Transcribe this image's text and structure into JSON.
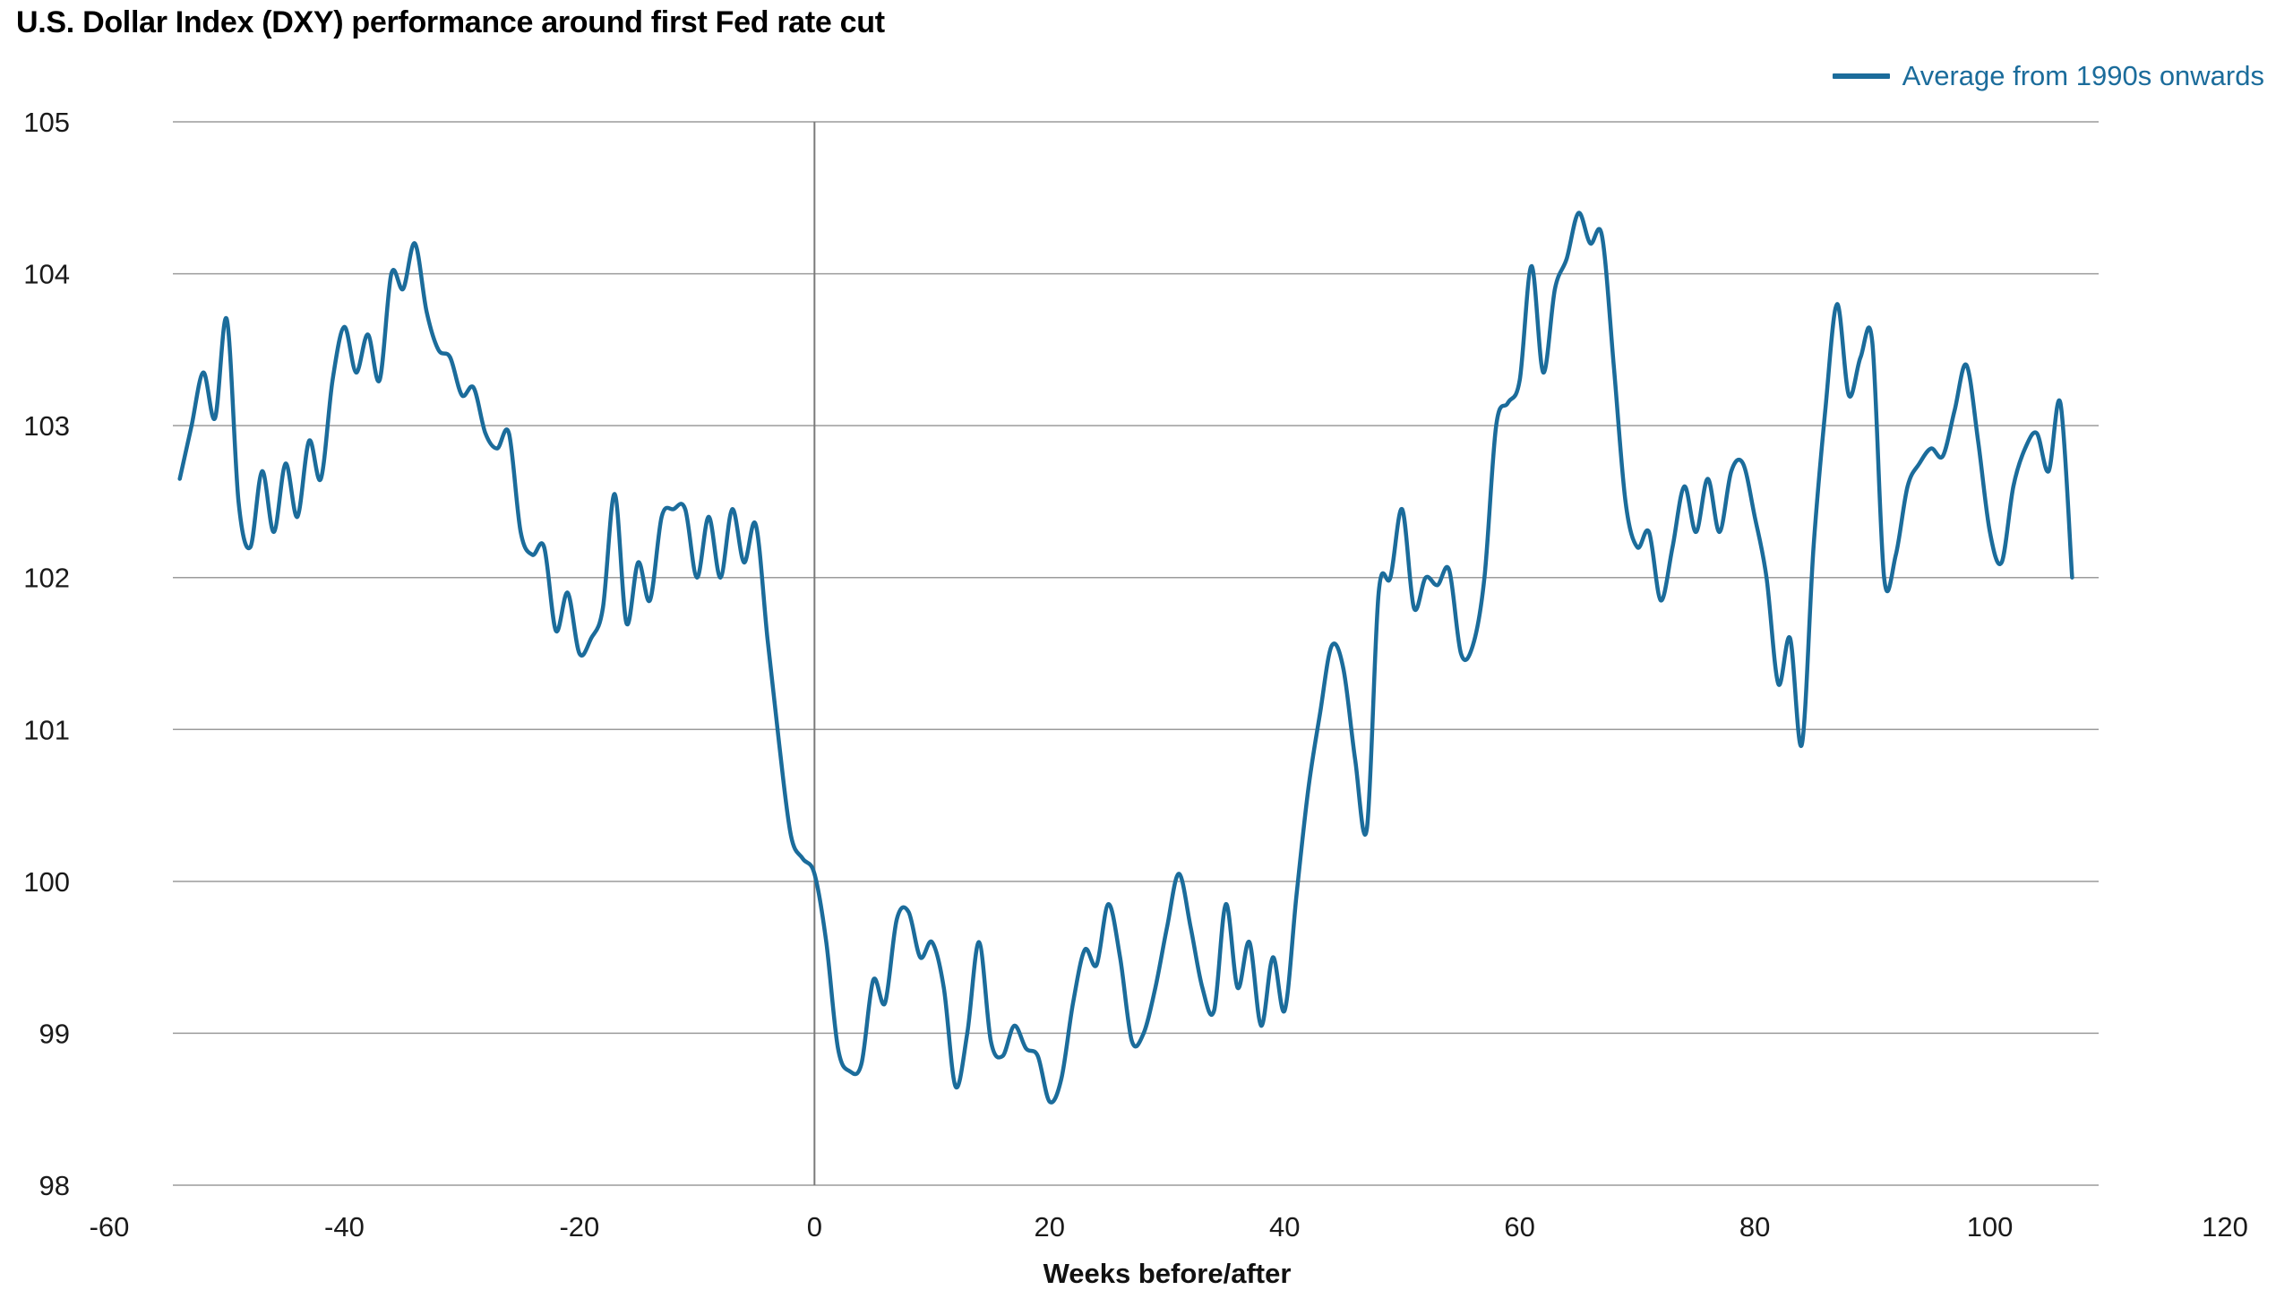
{
  "title": "U.S. Dollar Index (DXY) performance around first Fed rate cut",
  "legend": {
    "label": "Average from 1990s onwards"
  },
  "colors": {
    "line": "#1b6c9b",
    "grid": "#9b9b9b",
    "zero_line": "#7a7a7a",
    "text": "#1a1a1a"
  },
  "chart_data": {
    "type": "line",
    "title": "U.S. Dollar Index (DXY) performance around first Fed rate cut",
    "xlabel": "Weeks before/after",
    "ylabel": "",
    "xlim": [
      -60,
      120
    ],
    "ylim": [
      98,
      105
    ],
    "x_ticks": [
      -60,
      -40,
      -20,
      0,
      20,
      40,
      60,
      80,
      100,
      120
    ],
    "y_ticks": [
      98,
      99,
      100,
      101,
      102,
      103,
      104,
      105
    ],
    "grid": "horizontal",
    "legend_position": "top-right",
    "annotations": [
      {
        "type": "vline",
        "x": 0
      }
    ],
    "series": [
      {
        "name": "Average from 1990s onwards",
        "color": "#1b6c9b",
        "x": [
          -54,
          -53,
          -52,
          -51,
          -50,
          -49,
          -48,
          -47,
          -46,
          -45,
          -44,
          -43,
          -42,
          -41,
          -40,
          -39,
          -38,
          -37,
          -36,
          -35,
          -34,
          -33,
          -32,
          -31,
          -30,
          -29,
          -28,
          -27,
          -26,
          -25,
          -24,
          -23,
          -22,
          -21,
          -20,
          -19,
          -18,
          -17,
          -16,
          -15,
          -14,
          -13,
          -12,
          -11,
          -10,
          -9,
          -8,
          -7,
          -6,
          -5,
          -4,
          -3,
          -2,
          -1,
          0,
          1,
          2,
          3,
          4,
          5,
          6,
          7,
          8,
          9,
          10,
          11,
          12,
          13,
          14,
          15,
          16,
          17,
          18,
          19,
          20,
          21,
          22,
          23,
          24,
          25,
          26,
          27,
          28,
          29,
          30,
          31,
          32,
          33,
          34,
          35,
          36,
          37,
          38,
          39,
          40,
          41,
          42,
          43,
          44,
          45,
          46,
          47,
          48,
          49,
          50,
          51,
          52,
          53,
          54,
          55,
          56,
          57,
          58,
          59,
          60,
          61,
          62,
          63,
          64,
          65,
          66,
          67,
          68,
          69,
          70,
          71,
          72,
          73,
          74,
          75,
          76,
          77,
          78,
          79,
          80,
          81,
          82,
          83,
          84,
          85,
          86,
          87,
          88,
          89,
          90,
          91,
          92,
          93,
          94,
          95,
          96,
          97,
          98,
          99,
          100,
          101,
          102,
          103,
          104,
          105,
          106,
          107
        ],
        "y": [
          102.65,
          103.0,
          103.35,
          103.05,
          103.7,
          102.5,
          102.2,
          102.7,
          102.3,
          102.75,
          102.4,
          102.9,
          102.65,
          103.3,
          103.65,
          103.35,
          103.6,
          103.3,
          104.0,
          103.9,
          104.2,
          103.75,
          103.5,
          103.45,
          103.2,
          103.25,
          102.95,
          102.85,
          102.95,
          102.3,
          102.15,
          102.2,
          101.65,
          101.9,
          101.5,
          101.6,
          101.8,
          102.55,
          101.7,
          102.1,
          101.85,
          102.4,
          102.45,
          102.45,
          102.0,
          102.4,
          102.0,
          102.45,
          102.1,
          102.35,
          101.6,
          100.9,
          100.3,
          100.15,
          100.05,
          99.6,
          98.9,
          98.75,
          98.8,
          99.35,
          99.2,
          99.75,
          99.8,
          99.5,
          99.6,
          99.3,
          98.65,
          99.0,
          99.6,
          98.95,
          98.85,
          99.05,
          98.9,
          98.85,
          98.55,
          98.7,
          99.2,
          99.55,
          99.45,
          99.85,
          99.5,
          98.95,
          99.0,
          99.3,
          99.7,
          100.05,
          99.7,
          99.3,
          99.15,
          99.85,
          99.3,
          99.6,
          99.05,
          99.5,
          99.15,
          99.9,
          100.6,
          101.1,
          101.55,
          101.4,
          100.8,
          100.35,
          101.9,
          102.0,
          102.45,
          101.8,
          102.0,
          101.95,
          102.05,
          101.5,
          101.55,
          102.0,
          103.0,
          103.15,
          103.3,
          104.05,
          103.35,
          103.9,
          104.1,
          104.4,
          104.2,
          104.25,
          103.4,
          102.5,
          102.2,
          102.3,
          101.85,
          102.2,
          102.6,
          102.3,
          102.65,
          102.3,
          102.7,
          102.75,
          102.4,
          102.0,
          101.3,
          101.6,
          100.9,
          102.2,
          103.1,
          103.8,
          103.2,
          103.45,
          103.55,
          102.0,
          102.15,
          102.6,
          102.75,
          102.85,
          102.8,
          103.1,
          103.4,
          102.9,
          102.3,
          102.1,
          102.6,
          102.85,
          102.95,
          102.7,
          103.15,
          102.0
        ]
      }
    ]
  }
}
